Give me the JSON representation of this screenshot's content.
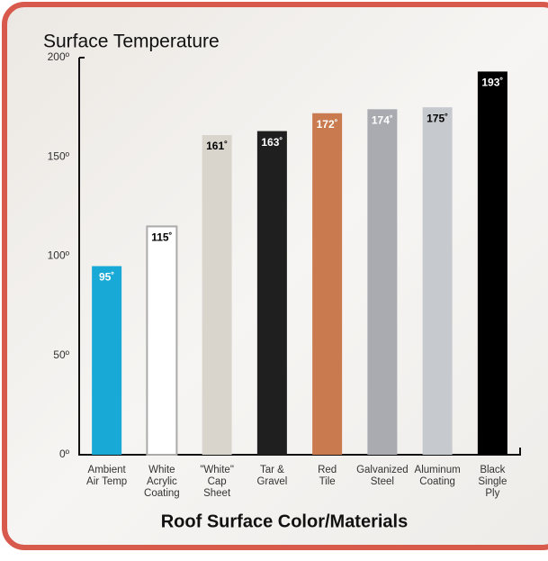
{
  "chart_data": {
    "type": "bar",
    "title": "Surface Temperature",
    "x_label": "Roof Surface Color/Materials",
    "categories": [
      [
        "Ambient",
        "Air Temp"
      ],
      [
        "White",
        "Acrylic",
        "Coating"
      ],
      [
        "\"White\"",
        "Cap",
        "Sheet"
      ],
      [
        "Tar &",
        "Gravel"
      ],
      [
        "Red",
        "Tile"
      ],
      [
        "Galvanized",
        "Steel"
      ],
      [
        "Aluminum",
        "Coating"
      ],
      [
        "Black",
        "Single",
        "Ply"
      ]
    ],
    "values": [
      95,
      115,
      161,
      163,
      172,
      174,
      175,
      193
    ],
    "value_labels": [
      "95˚",
      "115˚",
      "161˚",
      "163˚",
      "172˚",
      "174˚",
      "175˚",
      "193˚"
    ],
    "colors": [
      "#19a9d6",
      "#ffffff",
      "#d9d5cd",
      "#1f1f1f",
      "#c97a4f",
      "#a9abb1",
      "#c6cacf",
      "#000000"
    ],
    "label_colors": [
      "#ffffff",
      "#000000",
      "#000000",
      "#ffffff",
      "#ffffff",
      "#ffffff",
      "#000000",
      "#ffffff"
    ],
    "ylim": [
      0,
      200
    ],
    "yticks": [
      {
        "value": 0,
        "label": "0º"
      },
      {
        "value": 50,
        "label": "50º"
      },
      {
        "value": 100,
        "label": "100º"
      },
      {
        "value": 150,
        "label": "150º"
      },
      {
        "value": 200,
        "label": "200º"
      }
    ],
    "grid": false
  }
}
